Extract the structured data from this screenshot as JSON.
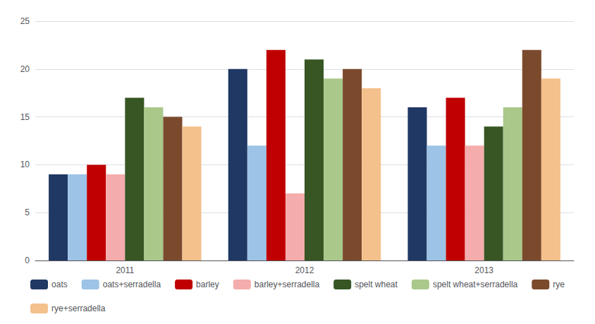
{
  "chart_data": {
    "type": "bar",
    "categories": [
      "2011",
      "2012",
      "2013"
    ],
    "series": [
      {
        "name": "oats",
        "color": "#1F3864",
        "values": [
          9,
          20,
          16
        ]
      },
      {
        "name": "oats+serradella",
        "color": "#9DC3E6",
        "values": [
          9,
          12,
          12
        ]
      },
      {
        "name": "barley",
        "color": "#C00000",
        "values": [
          10,
          22,
          17
        ]
      },
      {
        "name": "barley+serradella",
        "color": "#F4ACAC",
        "values": [
          9,
          7,
          12
        ]
      },
      {
        "name": "spelt wheat",
        "color": "#375623",
        "values": [
          17,
          21,
          14
        ]
      },
      {
        "name": "spelt wheat+serradella",
        "color": "#A9C88A",
        "values": [
          16,
          19,
          16
        ]
      },
      {
        "name": "rye",
        "color": "#7B4A2D",
        "values": [
          15,
          20,
          22
        ]
      },
      {
        "name": "rye+serradella",
        "color": "#F4C08C",
        "values": [
          14,
          18,
          19
        ]
      }
    ],
    "ylim": [
      0,
      25
    ],
    "yticks": [
      0,
      5,
      10,
      15,
      20,
      25
    ],
    "grid": true,
    "legend": "bottom"
  }
}
